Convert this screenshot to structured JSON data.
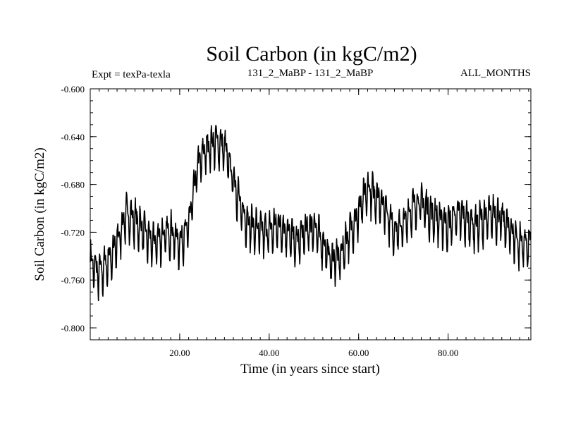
{
  "chart_data": {
    "type": "line",
    "title": "Soil Carbon (in kgC/m2)",
    "subtitle_left": "Expt = texPa-texla",
    "subtitle_center": "131_2_MaBP - 131_2_MaBP",
    "subtitle_right": "ALL_MONTHS",
    "xlabel": "Time (in years since start)",
    "ylabel": "Soil Carbon (in kgC/m2)",
    "xlim": [
      0,
      98.5
    ],
    "ylim": [
      -0.81,
      -0.6
    ],
    "xticks": [
      20,
      40,
      60,
      80
    ],
    "xtick_labels": [
      "20.00",
      "40.00",
      "60.00",
      "80.00"
    ],
    "yticks": [
      -0.6,
      -0.64,
      -0.68,
      -0.72,
      -0.76,
      -0.8
    ],
    "ytick_labels": [
      "-0.600",
      "-0.640",
      "-0.680",
      "-0.720",
      "-0.760",
      "-0.800"
    ],
    "series": [
      {
        "name": "soil carbon",
        "color": "#000000",
        "baseline": {
          "x": [
            0,
            2,
            4,
            6,
            8,
            10,
            12,
            14,
            16,
            18,
            20,
            22,
            24,
            26,
            28,
            30,
            32,
            34,
            36,
            38,
            40,
            42,
            44,
            46,
            48,
            50,
            52,
            54,
            56,
            58,
            60,
            62,
            64,
            66,
            68,
            70,
            72,
            74,
            76,
            78,
            80,
            82,
            84,
            86,
            88,
            90,
            92,
            94,
            96,
            98
          ],
          "y": [
            -0.745,
            -0.755,
            -0.745,
            -0.73,
            -0.705,
            -0.71,
            -0.72,
            -0.73,
            -0.725,
            -0.72,
            -0.73,
            -0.715,
            -0.665,
            -0.65,
            -0.645,
            -0.65,
            -0.675,
            -0.705,
            -0.715,
            -0.72,
            -0.72,
            -0.715,
            -0.72,
            -0.73,
            -0.72,
            -0.715,
            -0.73,
            -0.745,
            -0.74,
            -0.72,
            -0.705,
            -0.685,
            -0.69,
            -0.7,
            -0.72,
            -0.715,
            -0.7,
            -0.695,
            -0.705,
            -0.71,
            -0.715,
            -0.705,
            -0.71,
            -0.715,
            -0.71,
            -0.705,
            -0.71,
            -0.72,
            -0.73,
            -0.73
          ]
        },
        "monthly_amplitude": 0.024,
        "samples_per_year": 12
      }
    ]
  }
}
